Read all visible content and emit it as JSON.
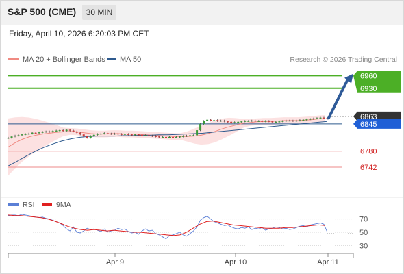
{
  "header": {
    "title": "S&P 500 (CME)",
    "timeframe": "30 MIN",
    "datetime": "Friday, April 10, 2026 6:20:03 PM CET"
  },
  "colors": {
    "ma20": "#f08a82",
    "ma50": "#2e5a8e",
    "resistance": "#4caf26",
    "support": "#ee8a8a",
    "arrow": "#2e5a98",
    "rsi": "#5b7fd6",
    "rsi_ma": "#e02020",
    "price_tag": "#1f5fd6",
    "tag_dark": "#333333"
  },
  "chart_data": [
    {
      "type": "candlestick",
      "legend": [
        {
          "name": "MA 20 + Bollinger Bands",
          "color": "#f08a82"
        },
        {
          "name": "MA 50",
          "color": "#2e5a8e"
        }
      ],
      "legend_placement": "top-left",
      "attribution": "Research © 2026 Trading Central",
      "ylim": [
        6680,
        6990
      ],
      "close_series": [
        6812,
        6815,
        6817,
        6818,
        6820,
        6821,
        6822,
        6824,
        6823,
        6825,
        6826,
        6827,
        6826,
        6828,
        6829,
        6830,
        6828,
        6831,
        6829,
        6827,
        6824,
        6820,
        6815,
        6812,
        6816,
        6819,
        6821,
        6822,
        6823,
        6822,
        6821,
        6822,
        6821,
        6820,
        6821,
        6820,
        6819,
        6820,
        6819,
        6818,
        6818,
        6817,
        6816,
        6815,
        6814,
        6814,
        6813,
        6814,
        6813,
        6814,
        6815,
        6816,
        6817,
        6818,
        6818,
        6830,
        6845,
        6852,
        6855,
        6853,
        6854,
        6852,
        6853,
        6851,
        6850,
        6848,
        6849,
        6850,
        6851,
        6852,
        6852,
        6853,
        6852,
        6852,
        6851,
        6852,
        6851,
        6850,
        6850,
        6851,
        6852,
        6853,
        6853,
        6852,
        6853,
        6854,
        6855,
        6856,
        6857,
        6858,
        6859,
        6860,
        6859,
        6857
      ],
      "ma20_series": [
        6790,
        6800,
        6808,
        6814,
        6818,
        6821,
        6823,
        6825,
        6826,
        6827,
        6826,
        6824,
        6822,
        6821,
        6821,
        6822,
        6822,
        6821,
        6821,
        6820,
        6819,
        6818,
        6817,
        6816,
        6815,
        6815,
        6815,
        6816,
        6818,
        6822,
        6827,
        6833,
        6838,
        6842,
        6846,
        6848,
        6850,
        6851,
        6851,
        6852,
        6853,
        6853,
        6853,
        6854,
        6855,
        6857,
        6858
      ],
      "ma50_series": [
        6745,
        6756,
        6768,
        6779,
        6789,
        6797,
        6804,
        6809,
        6813,
        6815,
        6816,
        6816,
        6816,
        6817,
        6817,
        6818,
        6818,
        6819,
        6819,
        6820,
        6821,
        6822,
        6823,
        6825,
        6827,
        6829,
        6831,
        6833,
        6835,
        6837,
        6839,
        6841,
        6843,
        6845,
        6847,
        6849,
        6851
      ],
      "x_ticks": [
        "Apr 9",
        "Apr 10",
        "Apr 11"
      ],
      "resistance": [
        6960,
        6930
      ],
      "support": [
        6780,
        6742
      ],
      "pivot": 6845,
      "last_price": 6863,
      "level_labels": {
        "r1": "6960",
        "r2": "6930",
        "last": "6863",
        "pivot": "6845",
        "s1": "6780",
        "s2": "6742"
      }
    },
    {
      "type": "line",
      "legend": [
        {
          "name": "RSI",
          "color": "#5b7fd6"
        },
        {
          "name": "9MA",
          "color": "#e02020"
        }
      ],
      "ylim": [
        20,
        80
      ],
      "y_ticks": [
        "70",
        "50",
        "30"
      ],
      "rsi_series": [
        75,
        76,
        76,
        75,
        77,
        76,
        75,
        74,
        73,
        72,
        73,
        71,
        70,
        68,
        66,
        64,
        60,
        55,
        52,
        58,
        50,
        49,
        52,
        56,
        54,
        55,
        53,
        51,
        55,
        50,
        52,
        53,
        56,
        54,
        55,
        51,
        49,
        50,
        47,
        52,
        55,
        52,
        53,
        48,
        46,
        43,
        40,
        45,
        46,
        48,
        50,
        46,
        44,
        48,
        52,
        58,
        68,
        72,
        74,
        70,
        66,
        64,
        62,
        60,
        61,
        58,
        56,
        55,
        57,
        56,
        58,
        54,
        56,
        55,
        57,
        53,
        55,
        56,
        58,
        57,
        55,
        56,
        54,
        55,
        57,
        59,
        60,
        58,
        61,
        62,
        63,
        64,
        62,
        50
      ],
      "rsi_ma_series": [
        76,
        75,
        75,
        74,
        73,
        72,
        70,
        67,
        63,
        59,
        56,
        54,
        53,
        54,
        53,
        52,
        53,
        52,
        51,
        50,
        50,
        49,
        48,
        47,
        46,
        45,
        46,
        50,
        56,
        62,
        66,
        67,
        65,
        63,
        61,
        60,
        59,
        58,
        57,
        56,
        56,
        56,
        57,
        57,
        58,
        59,
        60,
        61,
        60
      ]
    }
  ]
}
